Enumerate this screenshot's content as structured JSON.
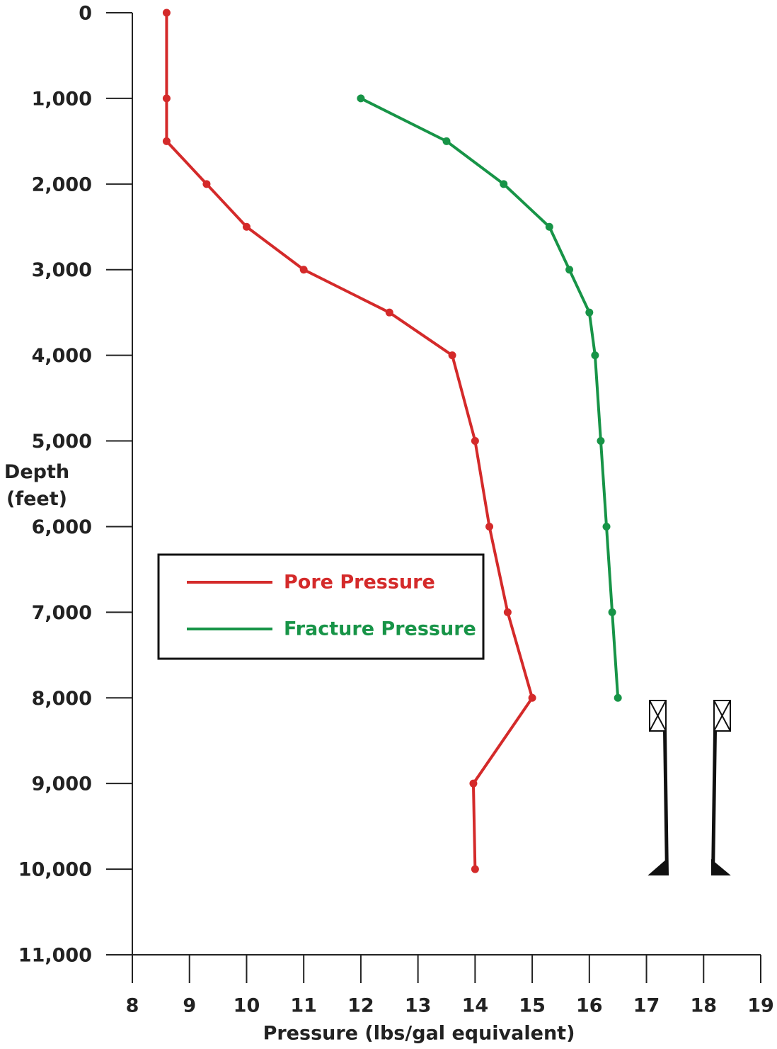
{
  "chart_data": {
    "type": "line",
    "xlabel": "Pressure (lbs/gal equivalent)",
    "ylabel": "Depth (feet)",
    "xlim": [
      8,
      19
    ],
    "xticks": [
      8,
      9,
      10,
      11,
      12,
      13,
      14,
      15,
      16,
      17,
      18,
      19
    ],
    "ylim": [
      0,
      11000
    ],
    "y_inverted": true,
    "yticks": [
      0,
      {
        "value": 1000,
        "label": "1,000"
      },
      {
        "value": 2000,
        "label": "2,000"
      },
      {
        "value": 3000,
        "label": "3,000"
      },
      {
        "value": 4000,
        "label": "4,000"
      },
      {
        "value": 5000,
        "label": "5,000"
      },
      {
        "value": 6000,
        "label": "6,000"
      },
      {
        "value": 7000,
        "label": "7,000"
      },
      {
        "value": 8000,
        "label": "8,000"
      },
      {
        "value": 9000,
        "label": "9,000"
      },
      {
        "value": 10000,
        "label": "10,000"
      },
      {
        "value": 11000,
        "label": "11,000"
      }
    ],
    "series": [
      {
        "name": "Pore Pressure",
        "color": "#d42a2a",
        "x": [
          8.6,
          8.6,
          8.6,
          9.3,
          10,
          11,
          12.5,
          13.6,
          14,
          14.25,
          14.57,
          15,
          13.97,
          14
        ],
        "values": [
          0,
          1000,
          1500,
          2000,
          2500,
          3000,
          3500,
          4000,
          5000,
          6000,
          7000,
          8000,
          9000,
          10000
        ]
      },
      {
        "name": "Fracture Pressure",
        "color": "#179447",
        "x": [
          12,
          13.5,
          14.5,
          15.3,
          15.65,
          16,
          16.1,
          16.2,
          16.3,
          16.4,
          16.5
        ],
        "values": [
          1000,
          1500,
          2000,
          2500,
          3000,
          3500,
          4000,
          5000,
          6000,
          7000,
          8000
        ]
      }
    ]
  }
}
